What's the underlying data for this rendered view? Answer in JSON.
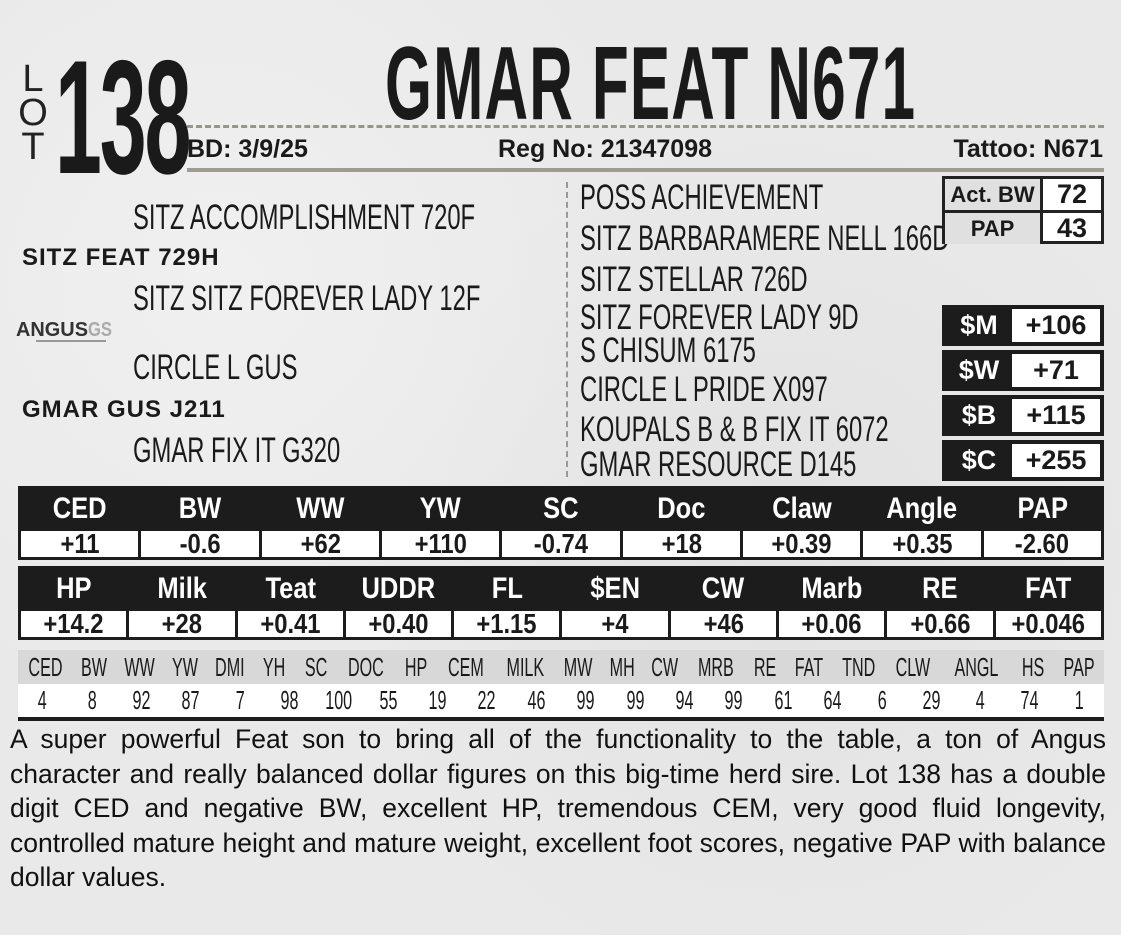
{
  "lot": {
    "label_letters": [
      "L",
      "O",
      "T"
    ],
    "number": "138"
  },
  "animal": {
    "name": "GMAR FEAT N671",
    "bd": "BD: 3/9/25",
    "reg": "Reg No: 21347098",
    "tattoo": "Tattoo: N671"
  },
  "pedigree": {
    "sire": "SITZ FEAT 729H",
    "sire_sire": "SITZ ACCOMPLISHMENT 720F",
    "sire_dam": "SITZ SITZ FOREVER LADY 12F",
    "dam": "GMAR GUS J211",
    "dam_sire": "CIRCLE L GUS",
    "dam_dam": "GMAR FIX IT G320",
    "right": [
      "POSS ACHIEVEMENT",
      "SITZ BARBARAMERE NELL 166D",
      "SITZ STELLAR 726D",
      "SITZ FOREVER LADY 9D",
      "S CHISUM 6175",
      "CIRCLE L PRIDE X097",
      "KOUPALS B & B FIX IT 6072",
      "GMAR RESOURCE D145"
    ]
  },
  "logo": {
    "text": "ANGUS GS"
  },
  "actuals": [
    {
      "label": "Act. BW",
      "value": "72"
    },
    {
      "label": "PAP",
      "value": "43"
    }
  ],
  "dollar_indexes": [
    {
      "label": "$M",
      "value": "+106"
    },
    {
      "label": "$W",
      "value": "+71"
    },
    {
      "label": "$B",
      "value": "+115"
    },
    {
      "label": "$C",
      "value": "+255"
    }
  ],
  "epd_table_1": [
    {
      "h": "CED",
      "v": "+11"
    },
    {
      "h": "BW",
      "v": "-0.6"
    },
    {
      "h": "WW",
      "v": "+62"
    },
    {
      "h": "YW",
      "v": "+110"
    },
    {
      "h": "SC",
      "v": "-0.74"
    },
    {
      "h": "Doc",
      "v": "+18"
    },
    {
      "h": "Claw",
      "v": "+0.39"
    },
    {
      "h": "Angle",
      "v": "+0.35"
    },
    {
      "h": "PAP",
      "v": "-2.60"
    }
  ],
  "epd_table_2": [
    {
      "h": "HP",
      "v": "+14.2"
    },
    {
      "h": "Milk",
      "v": "+28"
    },
    {
      "h": "Teat",
      "v": "+0.41"
    },
    {
      "h": "UDDR",
      "v": "+0.40"
    },
    {
      "h": "FL",
      "v": "+1.15"
    },
    {
      "h": "$EN",
      "v": "+4"
    },
    {
      "h": "CW",
      "v": "+46"
    },
    {
      "h": "Marb",
      "v": "+0.06"
    },
    {
      "h": "RE",
      "v": "+0.66"
    },
    {
      "h": "FAT",
      "v": "+0.046"
    }
  ],
  "percentiles": {
    "headers": [
      "CED",
      "BW",
      "WW",
      "YW",
      "DMI",
      "YH",
      "SC",
      "DOC",
      "HP",
      "CEM",
      "MILK",
      "MW",
      "MH",
      "CW",
      "MRB",
      "RE",
      "FAT",
      "TND",
      "CLW",
      "ANGL",
      "HS",
      "PAP"
    ],
    "values": [
      "4",
      "8",
      "92",
      "87",
      "7",
      "98",
      "100",
      "55",
      "19",
      "22",
      "46",
      "99",
      "99",
      "94",
      "99",
      "61",
      "64",
      "6",
      "29",
      "4",
      "74",
      "1"
    ]
  },
  "description": "A super powerful Feat son to bring all of the functionality to the table, a ton of Angus character and really balanced dollar figures on this big-time herd sire. Lot 138 has a double digit CED and negative BW, excellent HP, tremendous CEM, very good fluid longevity, controlled mature height and mature weight, excellent foot scores, negative PAP with balance dollar values."
}
